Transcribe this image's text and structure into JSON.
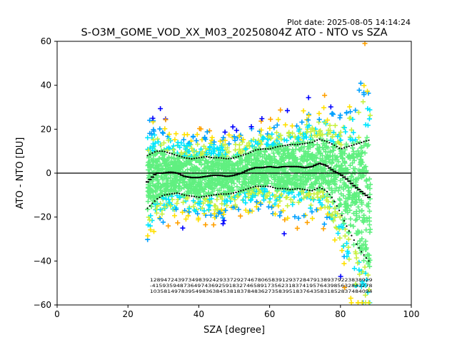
{
  "plot_date": "Plot date: 2025-08-05 14:14:24",
  "chart_data": {
    "type": "scatter",
    "title": "S-O3M_GOME_VOD_XX_M03_20250804Z ATO - NTO vs SZA",
    "xlabel": "SZA [degree]",
    "ylabel": "ATO - NTO [DU]",
    "xlim": [
      0,
      100
    ],
    "ylim": [
      -60,
      60
    ],
    "xticks": [
      0,
      20,
      40,
      60,
      80,
      100
    ],
    "yticks": [
      -60,
      -40,
      -20,
      0,
      20,
      40,
      60
    ],
    "grid": false,
    "legend": "none",
    "zero_line": 0,
    "scatter_color_scale": [
      "#0000ff",
      "#00a0ff",
      "#00e5ff",
      "#60f080",
      "#c8f040",
      "#ffe000",
      "#ffa000"
    ],
    "scatter_x_range": [
      25.5,
      88.5
    ],
    "mean_curve": {
      "x": [
        25.5,
        28,
        30,
        32,
        34,
        36,
        38,
        40,
        42,
        44,
        46,
        48,
        50,
        52,
        54,
        56,
        58,
        60,
        62,
        64,
        66,
        68,
        70,
        72,
        74,
        76,
        78,
        80,
        82,
        84,
        86,
        88
      ],
      "y": [
        -4,
        0,
        0,
        0.5,
        0,
        -1.5,
        -2,
        -2,
        -1.5,
        -1,
        -1,
        -1.5,
        -1,
        0,
        1.5,
        2.5,
        2.5,
        3,
        2.5,
        3,
        3,
        3,
        2.5,
        3,
        4.5,
        3.5,
        1,
        -0.5,
        -3,
        -6,
        -8.5,
        -11
      ]
    },
    "upper_sigma_curve": {
      "x": [
        25.5,
        28,
        30,
        32,
        34,
        36,
        38,
        40,
        42,
        44,
        46,
        48,
        50,
        52,
        54,
        56,
        58,
        60,
        62,
        64,
        66,
        68,
        70,
        72,
        74,
        76,
        78,
        80,
        82,
        84,
        86,
        88
      ],
      "y": [
        8,
        10,
        10,
        9,
        8,
        7,
        6.5,
        7,
        7.5,
        7,
        7,
        6.5,
        7,
        8,
        9,
        10.5,
        11,
        11,
        12,
        12.5,
        13,
        13,
        13.5,
        14,
        15.5,
        14.5,
        13,
        11,
        12,
        13,
        14,
        15
      ]
    },
    "lower_sigma_curve": {
      "x": [
        25.5,
        28,
        30,
        32,
        34,
        36,
        38,
        40,
        42,
        44,
        46,
        48,
        50,
        52,
        54,
        56,
        58,
        60,
        62,
        64,
        66,
        68,
        70,
        72,
        74,
        76,
        78,
        80,
        82,
        84,
        86,
        88
      ],
      "y": [
        -16,
        -12,
        -10,
        -9.5,
        -9,
        -10,
        -10.5,
        -11,
        -10.5,
        -10,
        -9.5,
        -9.5,
        -9,
        -8,
        -7,
        -6,
        -6,
        -6,
        -7,
        -7,
        -7.5,
        -7,
        -7.5,
        -8,
        -6.5,
        -8,
        -12,
        -18,
        -25,
        -31,
        -36,
        -40
      ]
    },
    "bin_count_rows": [
      "1289472439734983924293372927467806583912937284791389379223838929",
      "-415935948736497436925918327465891735623183741957643985632843278",
      "1035814978395498363845381837848362735839518376435831852837484094"
    ]
  }
}
